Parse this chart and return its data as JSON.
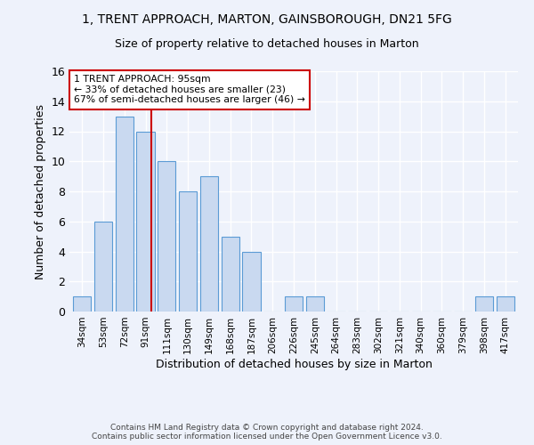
{
  "title1": "1, TRENT APPROACH, MARTON, GAINSBOROUGH, DN21 5FG",
  "title2": "Size of property relative to detached houses in Marton",
  "xlabel": "Distribution of detached houses by size in Marton",
  "ylabel": "Number of detached properties",
  "categories": [
    "34sqm",
    "53sqm",
    "72sqm",
    "91sqm",
    "111sqm",
    "130sqm",
    "149sqm",
    "168sqm",
    "187sqm",
    "206sqm",
    "226sqm",
    "245sqm",
    "264sqm",
    "283sqm",
    "302sqm",
    "321sqm",
    "340sqm",
    "360sqm",
    "379sqm",
    "398sqm",
    "417sqm"
  ],
  "values": [
    1,
    6,
    13,
    12,
    10,
    8,
    9,
    5,
    4,
    0,
    1,
    1,
    0,
    0,
    0,
    0,
    0,
    0,
    0,
    1,
    1
  ],
  "bar_color": "#c9d9f0",
  "bar_edge_color": "#5b9bd5",
  "vline_x": 3.27,
  "vline_color": "#cc0000",
  "annotation_line1": "1 TRENT APPROACH: 95sqm",
  "annotation_line2": "← 33% of detached houses are smaller (23)",
  "annotation_line3": "67% of semi-detached houses are larger (46) →",
  "annotation_box_color": "#cc0000",
  "footer": "Contains HM Land Registry data © Crown copyright and database right 2024.\nContains public sector information licensed under the Open Government Licence v3.0.",
  "ylim": [
    0,
    16
  ],
  "yticks": [
    0,
    2,
    4,
    6,
    8,
    10,
    12,
    14,
    16
  ],
  "background_color": "#eef2fb",
  "grid_color": "#ffffff"
}
